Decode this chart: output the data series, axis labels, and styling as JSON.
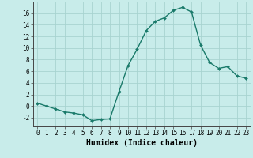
{
  "x": [
    0,
    1,
    2,
    3,
    4,
    5,
    6,
    7,
    8,
    9,
    10,
    11,
    12,
    13,
    14,
    15,
    16,
    17,
    18,
    19,
    20,
    21,
    22,
    23
  ],
  "y": [
    0.5,
    0.0,
    -0.5,
    -1.0,
    -1.2,
    -1.5,
    -2.5,
    -2.3,
    -2.2,
    2.5,
    7.0,
    9.8,
    13.0,
    14.6,
    15.2,
    16.5,
    17.0,
    16.2,
    10.5,
    7.5,
    6.5,
    6.8,
    5.2,
    4.8
  ],
  "line_color": "#1a7a6a",
  "marker_color": "#1a7a6a",
  "bg_color": "#c8ecea",
  "grid_color": "#a8d4d0",
  "xlabel": "Humidex (Indice chaleur)",
  "xlim": [
    -0.5,
    23.5
  ],
  "ylim": [
    -3.5,
    18.0
  ],
  "yticks": [
    -2,
    0,
    2,
    4,
    6,
    8,
    10,
    12,
    14,
    16
  ],
  "xticks": [
    0,
    1,
    2,
    3,
    4,
    5,
    6,
    7,
    8,
    9,
    10,
    11,
    12,
    13,
    14,
    15,
    16,
    17,
    18,
    19,
    20,
    21,
    22,
    23
  ],
  "tick_fontsize": 5.5,
  "xlabel_fontsize": 7.0,
  "marker_size": 2.0,
  "line_width": 1.0
}
